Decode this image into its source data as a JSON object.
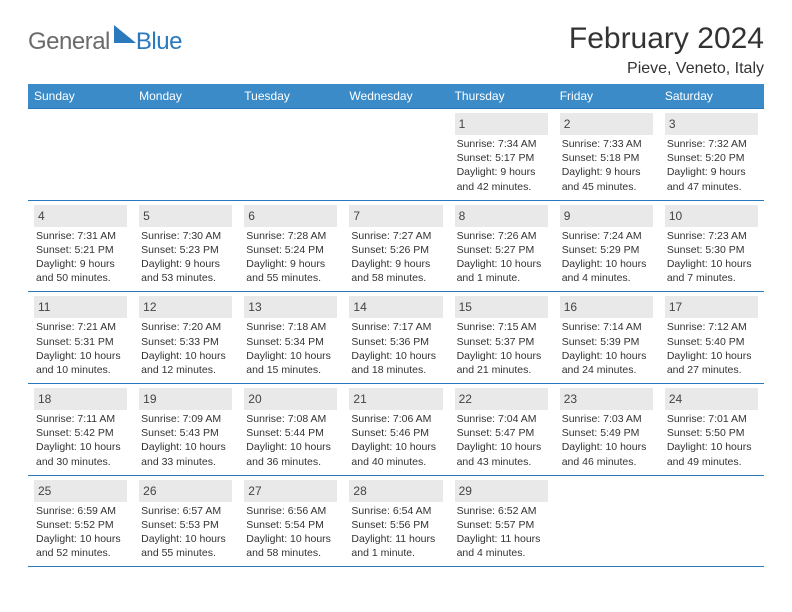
{
  "logo": {
    "general": "General",
    "blue": "Blue"
  },
  "header": {
    "title": "February 2024",
    "location": "Pieve, Veneto, Italy"
  },
  "weekdays": [
    "Sunday",
    "Monday",
    "Tuesday",
    "Wednesday",
    "Thursday",
    "Friday",
    "Saturday"
  ],
  "colors": {
    "header_bg": "#3b8bc9",
    "border": "#2a79bd",
    "daynum_bg": "#e9e9e9"
  },
  "weeks": [
    [
      null,
      null,
      null,
      null,
      {
        "n": "1",
        "sr": "Sunrise: 7:34 AM",
        "ss": "Sunset: 5:17 PM",
        "dl": "Daylight: 9 hours and 42 minutes."
      },
      {
        "n": "2",
        "sr": "Sunrise: 7:33 AM",
        "ss": "Sunset: 5:18 PM",
        "dl": "Daylight: 9 hours and 45 minutes."
      },
      {
        "n": "3",
        "sr": "Sunrise: 7:32 AM",
        "ss": "Sunset: 5:20 PM",
        "dl": "Daylight: 9 hours and 47 minutes."
      }
    ],
    [
      {
        "n": "4",
        "sr": "Sunrise: 7:31 AM",
        "ss": "Sunset: 5:21 PM",
        "dl": "Daylight: 9 hours and 50 minutes."
      },
      {
        "n": "5",
        "sr": "Sunrise: 7:30 AM",
        "ss": "Sunset: 5:23 PM",
        "dl": "Daylight: 9 hours and 53 minutes."
      },
      {
        "n": "6",
        "sr": "Sunrise: 7:28 AM",
        "ss": "Sunset: 5:24 PM",
        "dl": "Daylight: 9 hours and 55 minutes."
      },
      {
        "n": "7",
        "sr": "Sunrise: 7:27 AM",
        "ss": "Sunset: 5:26 PM",
        "dl": "Daylight: 9 hours and 58 minutes."
      },
      {
        "n": "8",
        "sr": "Sunrise: 7:26 AM",
        "ss": "Sunset: 5:27 PM",
        "dl": "Daylight: 10 hours and 1 minute."
      },
      {
        "n": "9",
        "sr": "Sunrise: 7:24 AM",
        "ss": "Sunset: 5:29 PM",
        "dl": "Daylight: 10 hours and 4 minutes."
      },
      {
        "n": "10",
        "sr": "Sunrise: 7:23 AM",
        "ss": "Sunset: 5:30 PM",
        "dl": "Daylight: 10 hours and 7 minutes."
      }
    ],
    [
      {
        "n": "11",
        "sr": "Sunrise: 7:21 AM",
        "ss": "Sunset: 5:31 PM",
        "dl": "Daylight: 10 hours and 10 minutes."
      },
      {
        "n": "12",
        "sr": "Sunrise: 7:20 AM",
        "ss": "Sunset: 5:33 PM",
        "dl": "Daylight: 10 hours and 12 minutes."
      },
      {
        "n": "13",
        "sr": "Sunrise: 7:18 AM",
        "ss": "Sunset: 5:34 PM",
        "dl": "Daylight: 10 hours and 15 minutes."
      },
      {
        "n": "14",
        "sr": "Sunrise: 7:17 AM",
        "ss": "Sunset: 5:36 PM",
        "dl": "Daylight: 10 hours and 18 minutes."
      },
      {
        "n": "15",
        "sr": "Sunrise: 7:15 AM",
        "ss": "Sunset: 5:37 PM",
        "dl": "Daylight: 10 hours and 21 minutes."
      },
      {
        "n": "16",
        "sr": "Sunrise: 7:14 AM",
        "ss": "Sunset: 5:39 PM",
        "dl": "Daylight: 10 hours and 24 minutes."
      },
      {
        "n": "17",
        "sr": "Sunrise: 7:12 AM",
        "ss": "Sunset: 5:40 PM",
        "dl": "Daylight: 10 hours and 27 minutes."
      }
    ],
    [
      {
        "n": "18",
        "sr": "Sunrise: 7:11 AM",
        "ss": "Sunset: 5:42 PM",
        "dl": "Daylight: 10 hours and 30 minutes."
      },
      {
        "n": "19",
        "sr": "Sunrise: 7:09 AM",
        "ss": "Sunset: 5:43 PM",
        "dl": "Daylight: 10 hours and 33 minutes."
      },
      {
        "n": "20",
        "sr": "Sunrise: 7:08 AM",
        "ss": "Sunset: 5:44 PM",
        "dl": "Daylight: 10 hours and 36 minutes."
      },
      {
        "n": "21",
        "sr": "Sunrise: 7:06 AM",
        "ss": "Sunset: 5:46 PM",
        "dl": "Daylight: 10 hours and 40 minutes."
      },
      {
        "n": "22",
        "sr": "Sunrise: 7:04 AM",
        "ss": "Sunset: 5:47 PM",
        "dl": "Daylight: 10 hours and 43 minutes."
      },
      {
        "n": "23",
        "sr": "Sunrise: 7:03 AM",
        "ss": "Sunset: 5:49 PM",
        "dl": "Daylight: 10 hours and 46 minutes."
      },
      {
        "n": "24",
        "sr": "Sunrise: 7:01 AM",
        "ss": "Sunset: 5:50 PM",
        "dl": "Daylight: 10 hours and 49 minutes."
      }
    ],
    [
      {
        "n": "25",
        "sr": "Sunrise: 6:59 AM",
        "ss": "Sunset: 5:52 PM",
        "dl": "Daylight: 10 hours and 52 minutes."
      },
      {
        "n": "26",
        "sr": "Sunrise: 6:57 AM",
        "ss": "Sunset: 5:53 PM",
        "dl": "Daylight: 10 hours and 55 minutes."
      },
      {
        "n": "27",
        "sr": "Sunrise: 6:56 AM",
        "ss": "Sunset: 5:54 PM",
        "dl": "Daylight: 10 hours and 58 minutes."
      },
      {
        "n": "28",
        "sr": "Sunrise: 6:54 AM",
        "ss": "Sunset: 5:56 PM",
        "dl": "Daylight: 11 hours and 1 minute."
      },
      {
        "n": "29",
        "sr": "Sunrise: 6:52 AM",
        "ss": "Sunset: 5:57 PM",
        "dl": "Daylight: 11 hours and 4 minutes."
      },
      null,
      null
    ]
  ]
}
